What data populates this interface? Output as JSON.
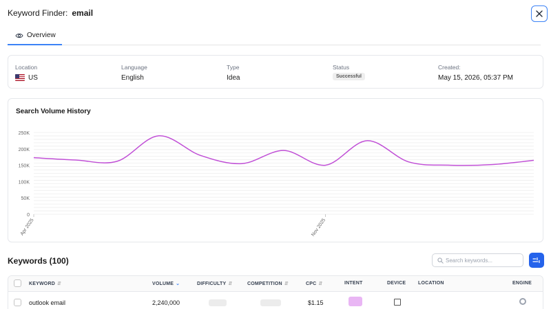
{
  "header": {
    "title_prefix": "Keyword Finder:",
    "keyword": "email"
  },
  "tabs": [
    {
      "label": "Overview",
      "icon": "eye-icon",
      "active": true
    }
  ],
  "info": {
    "location_label": "Location",
    "location_value": "US",
    "language_label": "Language",
    "language_value": "English",
    "type_label": "Type",
    "type_value": "Idea",
    "status_label": "Status",
    "status_value": "Successful",
    "created_label": "Created:",
    "created_value": "May 15, 2026, 05:37 PM"
  },
  "chart": {
    "title": "Search Volume History",
    "line_color": "#c04fd6"
  },
  "chart_data": {
    "type": "line",
    "title": "Search Volume History",
    "xlabel": "",
    "ylabel": "",
    "x_tick_labels": [
      "Apr 2025",
      "Nov 2025"
    ],
    "y_ticks": [
      "0",
      "50K",
      "100K",
      "150K",
      "200K",
      "250K"
    ],
    "ylim": [
      0,
      250000
    ],
    "grid": true,
    "x": [
      "Apr 2025",
      "May 2025",
      "Jun 2025",
      "Jul 2025",
      "Aug 2025",
      "Sep 2025",
      "Oct 2025",
      "Nov 2025",
      "Dec 2025",
      "Jan 2026",
      "Feb 2026",
      "Mar 2026",
      "Apr 2026"
    ],
    "series": [
      {
        "values": [
          173000,
          166000,
          162000,
          240000,
          180000,
          155000,
          195000,
          150000,
          225000,
          160000,
          150000,
          152000,
          165000
        ]
      }
    ]
  },
  "keywords": {
    "title": "Keywords (100)",
    "search_placeholder": "Search keywords...",
    "columns": {
      "keyword": "KEYWORD",
      "volume": "VOLUME",
      "difficulty": "DIFFICULTY",
      "competition": "COMPETITION",
      "cpc": "CPC",
      "intent": "INTENT",
      "device": "DEVICE",
      "location": "LOCATION",
      "engine": "ENGINE"
    },
    "sort_icon_inactive": "sort-icon",
    "sort_icon_active": "sort-desc-icon",
    "first_row_partial": {
      "keyword": "outlook email",
      "volume": "2,240,000",
      "cpc": "$1.15"
    }
  },
  "colors": {
    "accent": "#3b82f6",
    "button": "#2563eb",
    "intent_badge": "#e9b6f4"
  }
}
